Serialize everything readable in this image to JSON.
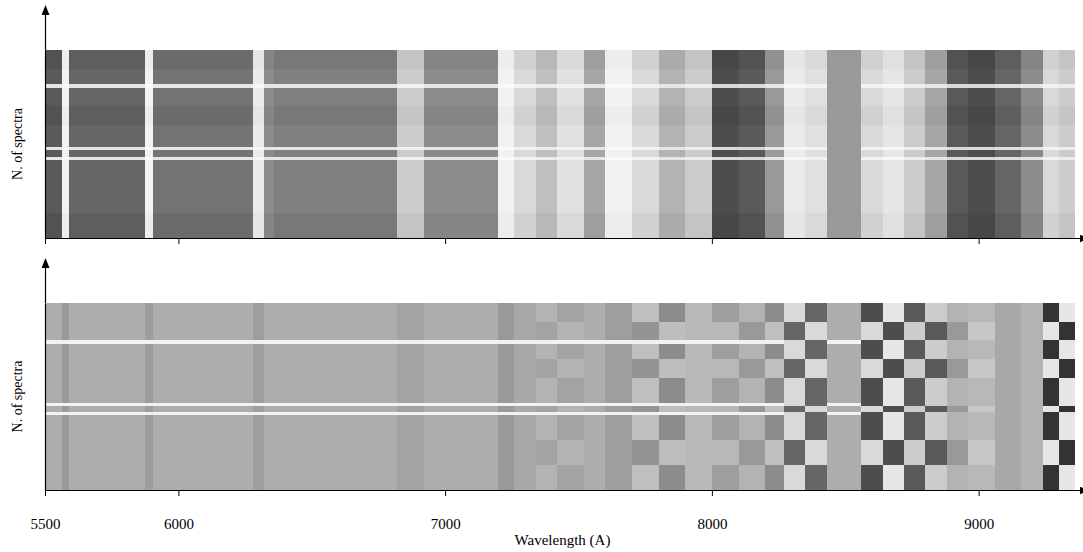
{
  "chart_data": [
    {
      "type": "heatmap",
      "y_label": "N. of spectra",
      "xlim": [
        5500,
        9380
      ],
      "ylim": [
        0,
        60
      ],
      "xticks": [
        5500,
        6000,
        7000,
        8000,
        9000
      ],
      "tick_labels": false,
      "zlim": [
        0,
        1
      ],
      "x_edges": [
        5500,
        5565,
        5590,
        5875,
        5905,
        6280,
        6320,
        6360,
        6820,
        6920,
        7200,
        7260,
        7340,
        7420,
        7520,
        7600,
        7700,
        7800,
        7900,
        8000,
        8100,
        8200,
        8270,
        8350,
        8430,
        8560,
        8640,
        8720,
        8800,
        8880,
        8960,
        9060,
        9160,
        9240,
        9300,
        9360
      ],
      "y_edges": [
        0,
        8,
        16,
        25,
        26,
        28,
        29,
        36,
        42,
        48,
        49,
        54,
        60
      ],
      "z": [
        [
          0.32,
          0.93,
          0.37,
          0.93,
          0.42,
          0.9,
          0.52,
          0.47,
          0.77,
          0.52,
          0.93,
          0.82,
          0.72,
          0.85,
          0.62,
          0.93,
          0.82,
          0.67,
          0.77,
          0.28,
          0.32,
          0.57,
          0.9,
          0.85,
          0.6,
          0.82,
          0.88,
          0.77,
          0.62,
          0.32,
          0.28,
          0.37,
          0.52,
          0.82,
          0.77
        ],
        [
          0.35,
          0.95,
          0.4,
          0.95,
          0.45,
          0.92,
          0.55,
          0.5,
          0.8,
          0.55,
          0.95,
          0.85,
          0.75,
          0.88,
          0.65,
          0.95,
          0.85,
          0.7,
          0.8,
          0.3,
          0.35,
          0.6,
          0.92,
          0.88,
          0.6,
          0.85,
          0.9,
          0.8,
          0.65,
          0.35,
          0.3,
          0.4,
          0.55,
          0.85,
          0.8
        ],
        [
          0.35,
          0.95,
          0.4,
          0.95,
          0.45,
          0.92,
          0.55,
          0.5,
          0.8,
          0.55,
          0.95,
          0.85,
          0.75,
          0.88,
          0.65,
          0.95,
          0.85,
          0.7,
          0.8,
          0.3,
          0.35,
          0.6,
          0.92,
          0.88,
          0.6,
          0.85,
          0.9,
          0.8,
          0.65,
          0.35,
          0.3,
          0.4,
          0.55,
          0.85,
          0.8
        ],
        [
          0.9,
          0.98,
          0.9,
          0.98,
          0.9,
          0.97,
          0.9,
          0.9,
          0.95,
          0.9,
          0.98,
          0.95,
          0.92,
          0.95,
          0.9,
          0.98,
          0.95,
          0.9,
          0.93,
          0.85,
          0.85,
          0.9,
          0.97,
          0.95,
          0.6,
          0.95,
          0.97,
          0.93,
          0.9,
          0.85,
          0.85,
          0.88,
          0.9,
          0.95,
          0.93
        ],
        [
          0.35,
          0.95,
          0.4,
          0.95,
          0.45,
          0.92,
          0.55,
          0.5,
          0.8,
          0.55,
          0.95,
          0.85,
          0.75,
          0.88,
          0.65,
          0.95,
          0.85,
          0.7,
          0.8,
          0.3,
          0.35,
          0.6,
          0.92,
          0.88,
          0.6,
          0.85,
          0.9,
          0.8,
          0.65,
          0.35,
          0.3,
          0.4,
          0.55,
          0.85,
          0.8
        ],
        [
          0.9,
          0.98,
          0.9,
          0.98,
          0.9,
          0.97,
          0.9,
          0.9,
          0.95,
          0.9,
          0.98,
          0.95,
          0.92,
          0.95,
          0.9,
          0.98,
          0.95,
          0.9,
          0.93,
          0.85,
          0.85,
          0.9,
          0.97,
          0.95,
          0.6,
          0.95,
          0.97,
          0.93,
          0.9,
          0.85,
          0.85,
          0.88,
          0.9,
          0.95,
          0.93
        ],
        [
          0.35,
          0.95,
          0.4,
          0.95,
          0.45,
          0.92,
          0.55,
          0.5,
          0.8,
          0.55,
          0.95,
          0.85,
          0.75,
          0.88,
          0.65,
          0.95,
          0.85,
          0.7,
          0.8,
          0.3,
          0.35,
          0.6,
          0.92,
          0.88,
          0.6,
          0.85,
          0.9,
          0.8,
          0.65,
          0.35,
          0.3,
          0.4,
          0.55,
          0.85,
          0.8
        ],
        [
          0.32,
          0.93,
          0.37,
          0.93,
          0.42,
          0.9,
          0.52,
          0.47,
          0.77,
          0.52,
          0.93,
          0.82,
          0.72,
          0.85,
          0.62,
          0.93,
          0.82,
          0.67,
          0.77,
          0.28,
          0.32,
          0.57,
          0.9,
          0.85,
          0.6,
          0.82,
          0.88,
          0.77,
          0.62,
          0.32,
          0.28,
          0.37,
          0.52,
          0.82,
          0.77
        ],
        [
          0.35,
          0.95,
          0.4,
          0.95,
          0.45,
          0.92,
          0.55,
          0.5,
          0.8,
          0.55,
          0.95,
          0.85,
          0.75,
          0.88,
          0.65,
          0.95,
          0.85,
          0.7,
          0.8,
          0.3,
          0.35,
          0.6,
          0.92,
          0.88,
          0.6,
          0.85,
          0.9,
          0.8,
          0.65,
          0.35,
          0.3,
          0.4,
          0.55,
          0.85,
          0.8
        ],
        [
          0.9,
          0.98,
          0.9,
          0.98,
          0.9,
          0.97,
          0.9,
          0.9,
          0.95,
          0.9,
          0.98,
          0.95,
          0.92,
          0.95,
          0.9,
          0.98,
          0.95,
          0.9,
          0.93,
          0.85,
          0.85,
          0.9,
          0.97,
          0.95,
          0.6,
          0.95,
          0.97,
          0.93,
          0.9,
          0.85,
          0.85,
          0.88,
          0.9,
          0.95,
          0.93
        ],
        [
          0.35,
          0.95,
          0.4,
          0.95,
          0.45,
          0.92,
          0.55,
          0.5,
          0.8,
          0.55,
          0.95,
          0.85,
          0.75,
          0.88,
          0.65,
          0.95,
          0.85,
          0.7,
          0.8,
          0.3,
          0.35,
          0.6,
          0.92,
          0.88,
          0.6,
          0.85,
          0.9,
          0.8,
          0.65,
          0.35,
          0.3,
          0.4,
          0.55,
          0.85,
          0.8
        ],
        [
          0.32,
          0.93,
          0.37,
          0.93,
          0.42,
          0.9,
          0.52,
          0.47,
          0.77,
          0.52,
          0.93,
          0.82,
          0.72,
          0.85,
          0.62,
          0.93,
          0.82,
          0.67,
          0.77,
          0.28,
          0.32,
          0.57,
          0.9,
          0.85,
          0.6,
          0.82,
          0.88,
          0.77,
          0.62,
          0.32,
          0.28,
          0.37,
          0.52,
          0.82,
          0.77
        ]
      ]
    },
    {
      "type": "heatmap",
      "y_label": "N. of spectra",
      "x_label": "Wavelength (A)",
      "xlim": [
        5500,
        9380
      ],
      "ylim": [
        0,
        60
      ],
      "xticks": [
        5500,
        6000,
        7000,
        8000,
        9000
      ],
      "tick_labels": "x",
      "zlim": [
        0,
        1
      ],
      "x_edges": [
        5500,
        5565,
        5590,
        5875,
        5905,
        6280,
        6320,
        6360,
        6820,
        6920,
        7200,
        7260,
        7340,
        7420,
        7520,
        7600,
        7700,
        7800,
        7900,
        8000,
        8100,
        8200,
        8270,
        8350,
        8430,
        8560,
        8640,
        8720,
        8800,
        8880,
        8960,
        9060,
        9160,
        9240,
        9300,
        9360
      ],
      "y_edges": [
        0,
        8,
        16,
        24,
        25,
        27,
        28,
        36,
        42,
        47,
        48,
        54,
        60
      ],
      "z": [
        [
          0.68,
          0.6,
          0.68,
          0.62,
          0.68,
          0.62,
          0.68,
          0.68,
          0.64,
          0.68,
          0.6,
          0.66,
          0.7,
          0.64,
          0.68,
          0.62,
          0.75,
          0.55,
          0.72,
          0.62,
          0.7,
          0.55,
          0.85,
          0.4,
          0.68,
          0.3,
          0.9,
          0.35,
          0.8,
          0.7,
          0.72,
          0.66,
          0.7,
          0.2,
          0.9
        ],
        [
          0.68,
          0.6,
          0.68,
          0.62,
          0.68,
          0.62,
          0.68,
          0.68,
          0.64,
          0.68,
          0.6,
          0.66,
          0.64,
          0.7,
          0.68,
          0.62,
          0.58,
          0.74,
          0.72,
          0.72,
          0.6,
          0.75,
          0.4,
          0.85,
          0.68,
          0.85,
          0.3,
          0.8,
          0.35,
          0.6,
          0.78,
          0.66,
          0.7,
          0.9,
          0.2
        ],
        [
          0.68,
          0.6,
          0.68,
          0.62,
          0.68,
          0.62,
          0.68,
          0.68,
          0.64,
          0.68,
          0.6,
          0.66,
          0.7,
          0.64,
          0.68,
          0.62,
          0.75,
          0.55,
          0.72,
          0.62,
          0.7,
          0.55,
          0.85,
          0.4,
          0.68,
          0.3,
          0.9,
          0.35,
          0.8,
          0.7,
          0.72,
          0.66,
          0.7,
          0.2,
          0.9
        ],
        [
          0.95,
          0.95,
          0.95,
          0.95,
          0.95,
          0.95,
          0.95,
          0.95,
          0.95,
          0.95,
          0.95,
          0.95,
          0.95,
          0.95,
          0.95,
          0.95,
          0.95,
          0.95,
          0.95,
          0.95,
          0.95,
          0.95,
          0.85,
          0.4,
          0.95,
          0.3,
          0.9,
          0.35,
          0.8,
          0.7,
          0.72,
          0.66,
          0.7,
          0.2,
          0.9
        ],
        [
          0.68,
          0.6,
          0.68,
          0.62,
          0.68,
          0.62,
          0.68,
          0.68,
          0.64,
          0.68,
          0.6,
          0.66,
          0.64,
          0.7,
          0.68,
          0.62,
          0.58,
          0.74,
          0.72,
          0.72,
          0.6,
          0.75,
          0.4,
          0.85,
          0.68,
          0.85,
          0.3,
          0.8,
          0.35,
          0.6,
          0.78,
          0.66,
          0.7,
          0.9,
          0.2
        ],
        [
          0.95,
          0.95,
          0.95,
          0.95,
          0.95,
          0.95,
          0.95,
          0.95,
          0.95,
          0.95,
          0.95,
          0.95,
          0.95,
          0.95,
          0.95,
          0.95,
          0.95,
          0.95,
          0.95,
          0.95,
          0.95,
          0.95,
          0.85,
          0.4,
          0.95,
          0.3,
          0.9,
          0.35,
          0.8,
          0.7,
          0.72,
          0.66,
          0.7,
          0.2,
          0.9
        ],
        [
          0.68,
          0.6,
          0.68,
          0.62,
          0.68,
          0.62,
          0.68,
          0.68,
          0.64,
          0.68,
          0.6,
          0.66,
          0.7,
          0.64,
          0.68,
          0.62,
          0.75,
          0.55,
          0.72,
          0.62,
          0.7,
          0.55,
          0.85,
          0.4,
          0.68,
          0.3,
          0.9,
          0.35,
          0.8,
          0.7,
          0.72,
          0.66,
          0.7,
          0.2,
          0.9
        ],
        [
          0.68,
          0.6,
          0.68,
          0.62,
          0.68,
          0.62,
          0.68,
          0.68,
          0.64,
          0.68,
          0.6,
          0.66,
          0.64,
          0.7,
          0.68,
          0.62,
          0.58,
          0.74,
          0.72,
          0.72,
          0.6,
          0.75,
          0.4,
          0.85,
          0.68,
          0.85,
          0.3,
          0.8,
          0.35,
          0.6,
          0.78,
          0.66,
          0.7,
          0.9,
          0.2
        ],
        [
          0.68,
          0.6,
          0.68,
          0.62,
          0.68,
          0.62,
          0.68,
          0.68,
          0.64,
          0.68,
          0.6,
          0.66,
          0.7,
          0.64,
          0.68,
          0.62,
          0.75,
          0.55,
          0.72,
          0.62,
          0.7,
          0.55,
          0.85,
          0.4,
          0.68,
          0.3,
          0.9,
          0.35,
          0.8,
          0.7,
          0.72,
          0.66,
          0.7,
          0.2,
          0.9
        ],
        [
          0.95,
          0.95,
          0.95,
          0.95,
          0.95,
          0.95,
          0.95,
          0.95,
          0.95,
          0.95,
          0.95,
          0.95,
          0.95,
          0.95,
          0.95,
          0.95,
          0.95,
          0.95,
          0.95,
          0.95,
          0.95,
          0.95,
          0.85,
          0.4,
          0.95,
          0.3,
          0.9,
          0.35,
          0.8,
          0.7,
          0.72,
          0.66,
          0.7,
          0.2,
          0.9
        ],
        [
          0.68,
          0.6,
          0.68,
          0.62,
          0.68,
          0.62,
          0.68,
          0.68,
          0.64,
          0.68,
          0.6,
          0.66,
          0.64,
          0.7,
          0.68,
          0.62,
          0.58,
          0.74,
          0.72,
          0.72,
          0.6,
          0.75,
          0.4,
          0.85,
          0.68,
          0.85,
          0.3,
          0.8,
          0.35,
          0.6,
          0.78,
          0.66,
          0.7,
          0.9,
          0.2
        ],
        [
          0.68,
          0.6,
          0.68,
          0.62,
          0.68,
          0.62,
          0.68,
          0.68,
          0.64,
          0.68,
          0.6,
          0.66,
          0.7,
          0.64,
          0.68,
          0.62,
          0.75,
          0.55,
          0.72,
          0.62,
          0.7,
          0.55,
          0.85,
          0.4,
          0.68,
          0.3,
          0.9,
          0.35,
          0.8,
          0.7,
          0.72,
          0.66,
          0.7,
          0.2,
          0.9
        ]
      ]
    }
  ]
}
